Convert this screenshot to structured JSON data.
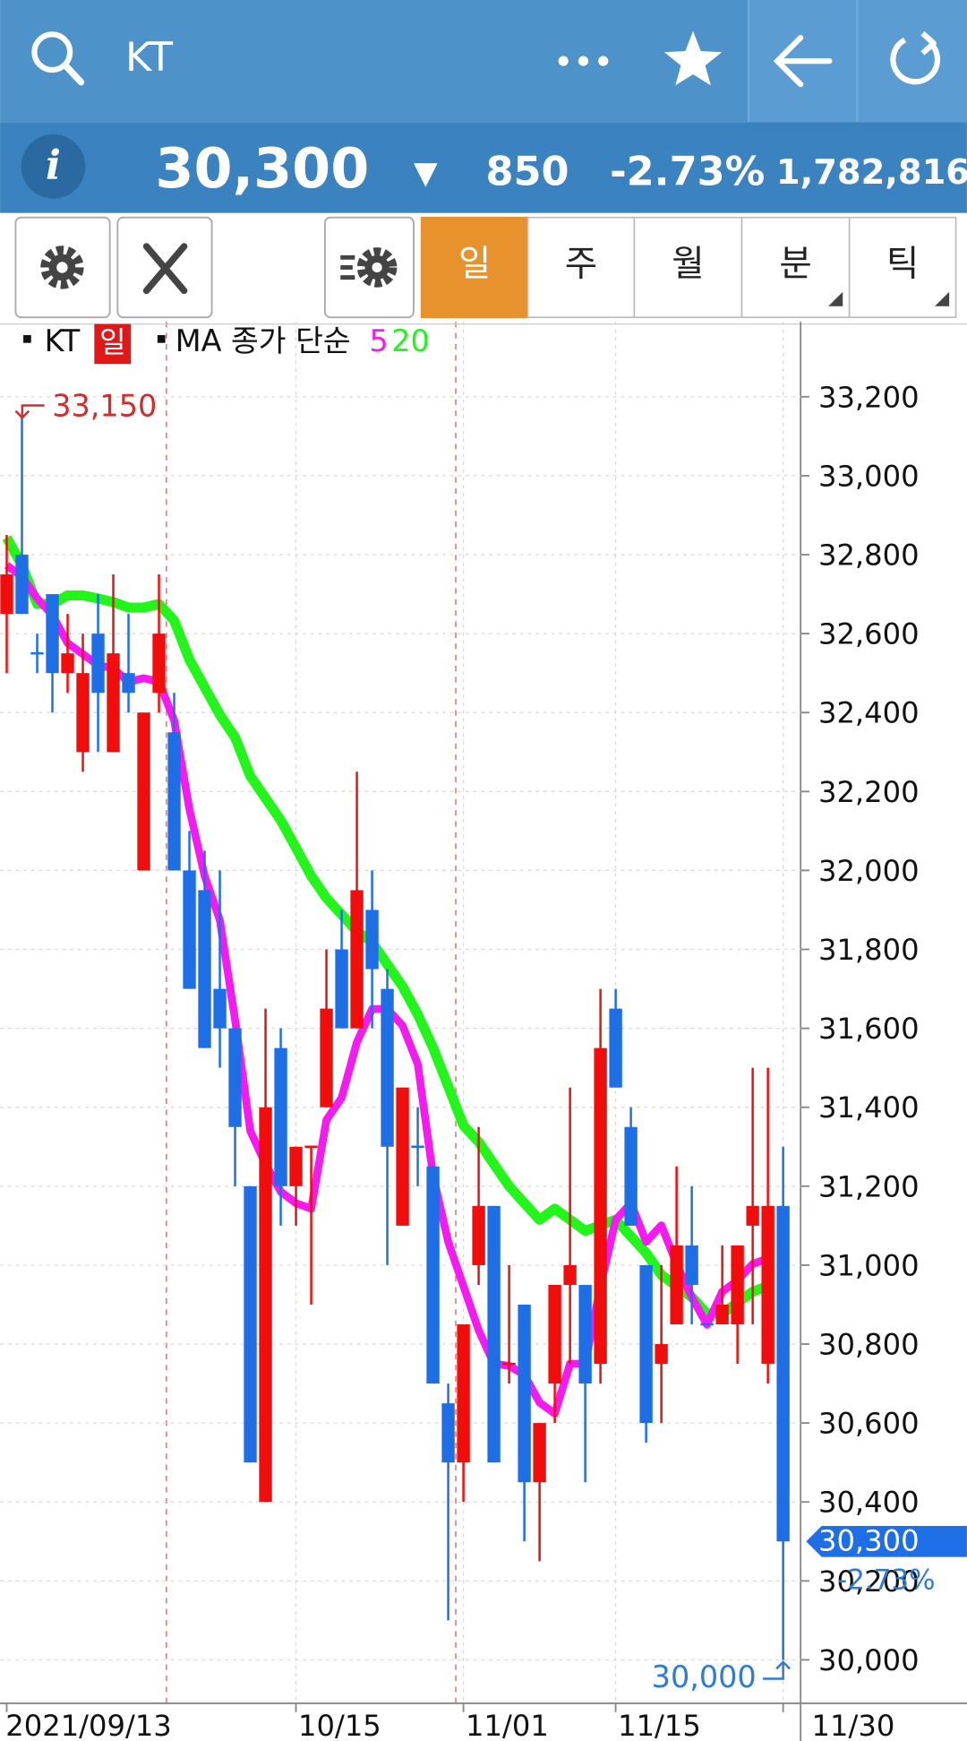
{
  "header": {
    "search_text": "KT"
  },
  "quote": {
    "price": "30,300",
    "direction": "▼",
    "change": "850",
    "change_pct": "-2.73%",
    "volume": "1,782,816"
  },
  "tabs": [
    "일",
    "주",
    "월",
    "분",
    "틱"
  ],
  "chart_data": {
    "type": "candlestick",
    "name": "KT",
    "period": "일",
    "ma_label": "MA 종가 단순",
    "categories": [
      "2021/09/13",
      null,
      null,
      null,
      null,
      null,
      null,
      null,
      null,
      null,
      null,
      null,
      null,
      null,
      null,
      null,
      null,
      null,
      null,
      "10/15",
      null,
      null,
      null,
      null,
      null,
      null,
      null,
      null,
      null,
      null,
      "11/01",
      null,
      null,
      null,
      null,
      null,
      null,
      null,
      null,
      null,
      "11/15",
      null,
      null,
      null,
      null,
      null,
      null,
      null,
      null,
      null,
      null,
      "11/30"
    ],
    "ohlc": {
      "open": [
        32650,
        32800,
        32550,
        32700,
        32500,
        32300,
        32600,
        32300,
        32500,
        32000,
        32450,
        32350,
        32000,
        31950,
        31700,
        31600,
        31200,
        30400,
        31550,
        31200,
        31300,
        31400,
        31800,
        31600,
        31900,
        31700,
        31100,
        31300,
        31250,
        30650,
        30500,
        31000,
        31150,
        30750,
        30900,
        30450,
        30700,
        30950,
        30950,
        30750,
        31650,
        31350,
        31000,
        30750,
        30850,
        31050,
        30850,
        30850,
        30850,
        31100,
        30750,
        31150
      ],
      "high": [
        32850,
        33150,
        32600,
        32700,
        32650,
        32600,
        32700,
        32750,
        32650,
        32400,
        32750,
        32450,
        32100,
        32050,
        32000,
        31600,
        31200,
        31650,
        31600,
        31300,
        31300,
        31800,
        31900,
        32250,
        32000,
        31750,
        31450,
        31400,
        31250,
        30700,
        30850,
        31350,
        31150,
        31000,
        30900,
        30600,
        30950,
        31450,
        30950,
        31700,
        31700,
        31400,
        31000,
        31000,
        31250,
        31200,
        30850,
        31050,
        31050,
        31500,
        31500,
        31300
      ],
      "low": [
        32500,
        32650,
        32500,
        32400,
        32450,
        32250,
        32300,
        32300,
        32400,
        32000,
        32400,
        32000,
        31700,
        31550,
        31500,
        31200,
        30500,
        30400,
        31100,
        31100,
        30900,
        31400,
        31600,
        31600,
        31600,
        31000,
        31100,
        31200,
        30700,
        30100,
        30400,
        30950,
        30500,
        30700,
        30300,
        30250,
        30600,
        30750,
        30450,
        30700,
        31450,
        31100,
        30550,
        30600,
        30850,
        30850,
        30850,
        30850,
        30750,
        30850,
        30700,
        30000
      ],
      "close": [
        32750,
        32650,
        32550,
        32500,
        32550,
        32500,
        32450,
        32550,
        32450,
        32400,
        32600,
        32000,
        31700,
        31550,
        31600,
        31350,
        30500,
        31400,
        31200,
        31300,
        31300,
        31650,
        31600,
        31950,
        31750,
        31300,
        31450,
        31300,
        30700,
        30500,
        30850,
        31150,
        30500,
        30750,
        30450,
        30600,
        30950,
        31000,
        30700,
        31550,
        31450,
        31100,
        30600,
        30800,
        31050,
        30950,
        30850,
        30900,
        31050,
        31150,
        31150,
        30300
      ]
    },
    "up_color": "#f20d0d",
    "down_color": "#1e6fe6",
    "series": [
      {
        "name": "20",
        "color": "#22f51a",
        "values": [
          32843,
          32773,
          32675,
          32675,
          32697,
          32697,
          32689,
          32680,
          32666,
          32666,
          32675,
          32633,
          32534,
          32464,
          32394,
          32337,
          32239,
          32183,
          32127,
          32057,
          31986,
          31930,
          31888,
          31846,
          31818,
          31762,
          31706,
          31635,
          31551,
          31453,
          31354,
          31312,
          31256,
          31200,
          31157,
          31115,
          31143,
          31115,
          31087,
          31101,
          31115,
          31073,
          31031,
          30975,
          30947,
          30919,
          30877,
          30877,
          30905,
          30933,
          30947,
          null
        ]
      },
      {
        "name": "5",
        "color": "#f51af0",
        "values": [
          32773,
          32745,
          32689,
          32647,
          32576,
          32548,
          32520,
          32512,
          32478,
          32487,
          32478,
          32380,
          32155,
          31986,
          31874,
          31621,
          31340,
          31256,
          31186,
          31157,
          31143,
          31368,
          31424,
          31565,
          31649,
          31649,
          31607,
          31509,
          31228,
          31059,
          30947,
          30835,
          30750,
          30745,
          30722,
          30652,
          30624,
          30750,
          30750,
          30947,
          31115,
          31157,
          31059,
          31101,
          31003,
          30919,
          30849,
          30933,
          30961,
          31003,
          31017,
          null
        ]
      }
    ],
    "ylim": [
      29890,
      33390
    ],
    "yticks": [
      {
        "value": 30000,
        "label": "30,000"
      },
      {
        "value": 30200,
        "label": "30,200"
      },
      {
        "value": 30400,
        "label": "30,400"
      },
      {
        "value": 30600,
        "label": "30,600"
      },
      {
        "value": 30800,
        "label": "30,800"
      },
      {
        "value": 31000,
        "label": "31,000"
      },
      {
        "value": 31200,
        "label": "31,200"
      },
      {
        "value": 31400,
        "label": "31,400"
      },
      {
        "value": 31600,
        "label": "31,600"
      },
      {
        "value": 31800,
        "label": "31,800"
      },
      {
        "value": 32000,
        "label": "32,000"
      },
      {
        "value": 32200,
        "label": "32,200"
      },
      {
        "value": 32400,
        "label": "32,400"
      },
      {
        "value": 32600,
        "label": "32,600"
      },
      {
        "value": 32800,
        "label": "32,800"
      },
      {
        "value": 33000,
        "label": "33,000"
      },
      {
        "value": 33200,
        "label": "33,200"
      }
    ],
    "grid": true,
    "high_marker": {
      "value": 33150,
      "label": "33,150"
    },
    "low_marker": {
      "value": 30000,
      "label": "30,000"
    },
    "last_marker": {
      "value": 30300,
      "label": "30,300",
      "change": "-2.73%"
    }
  }
}
